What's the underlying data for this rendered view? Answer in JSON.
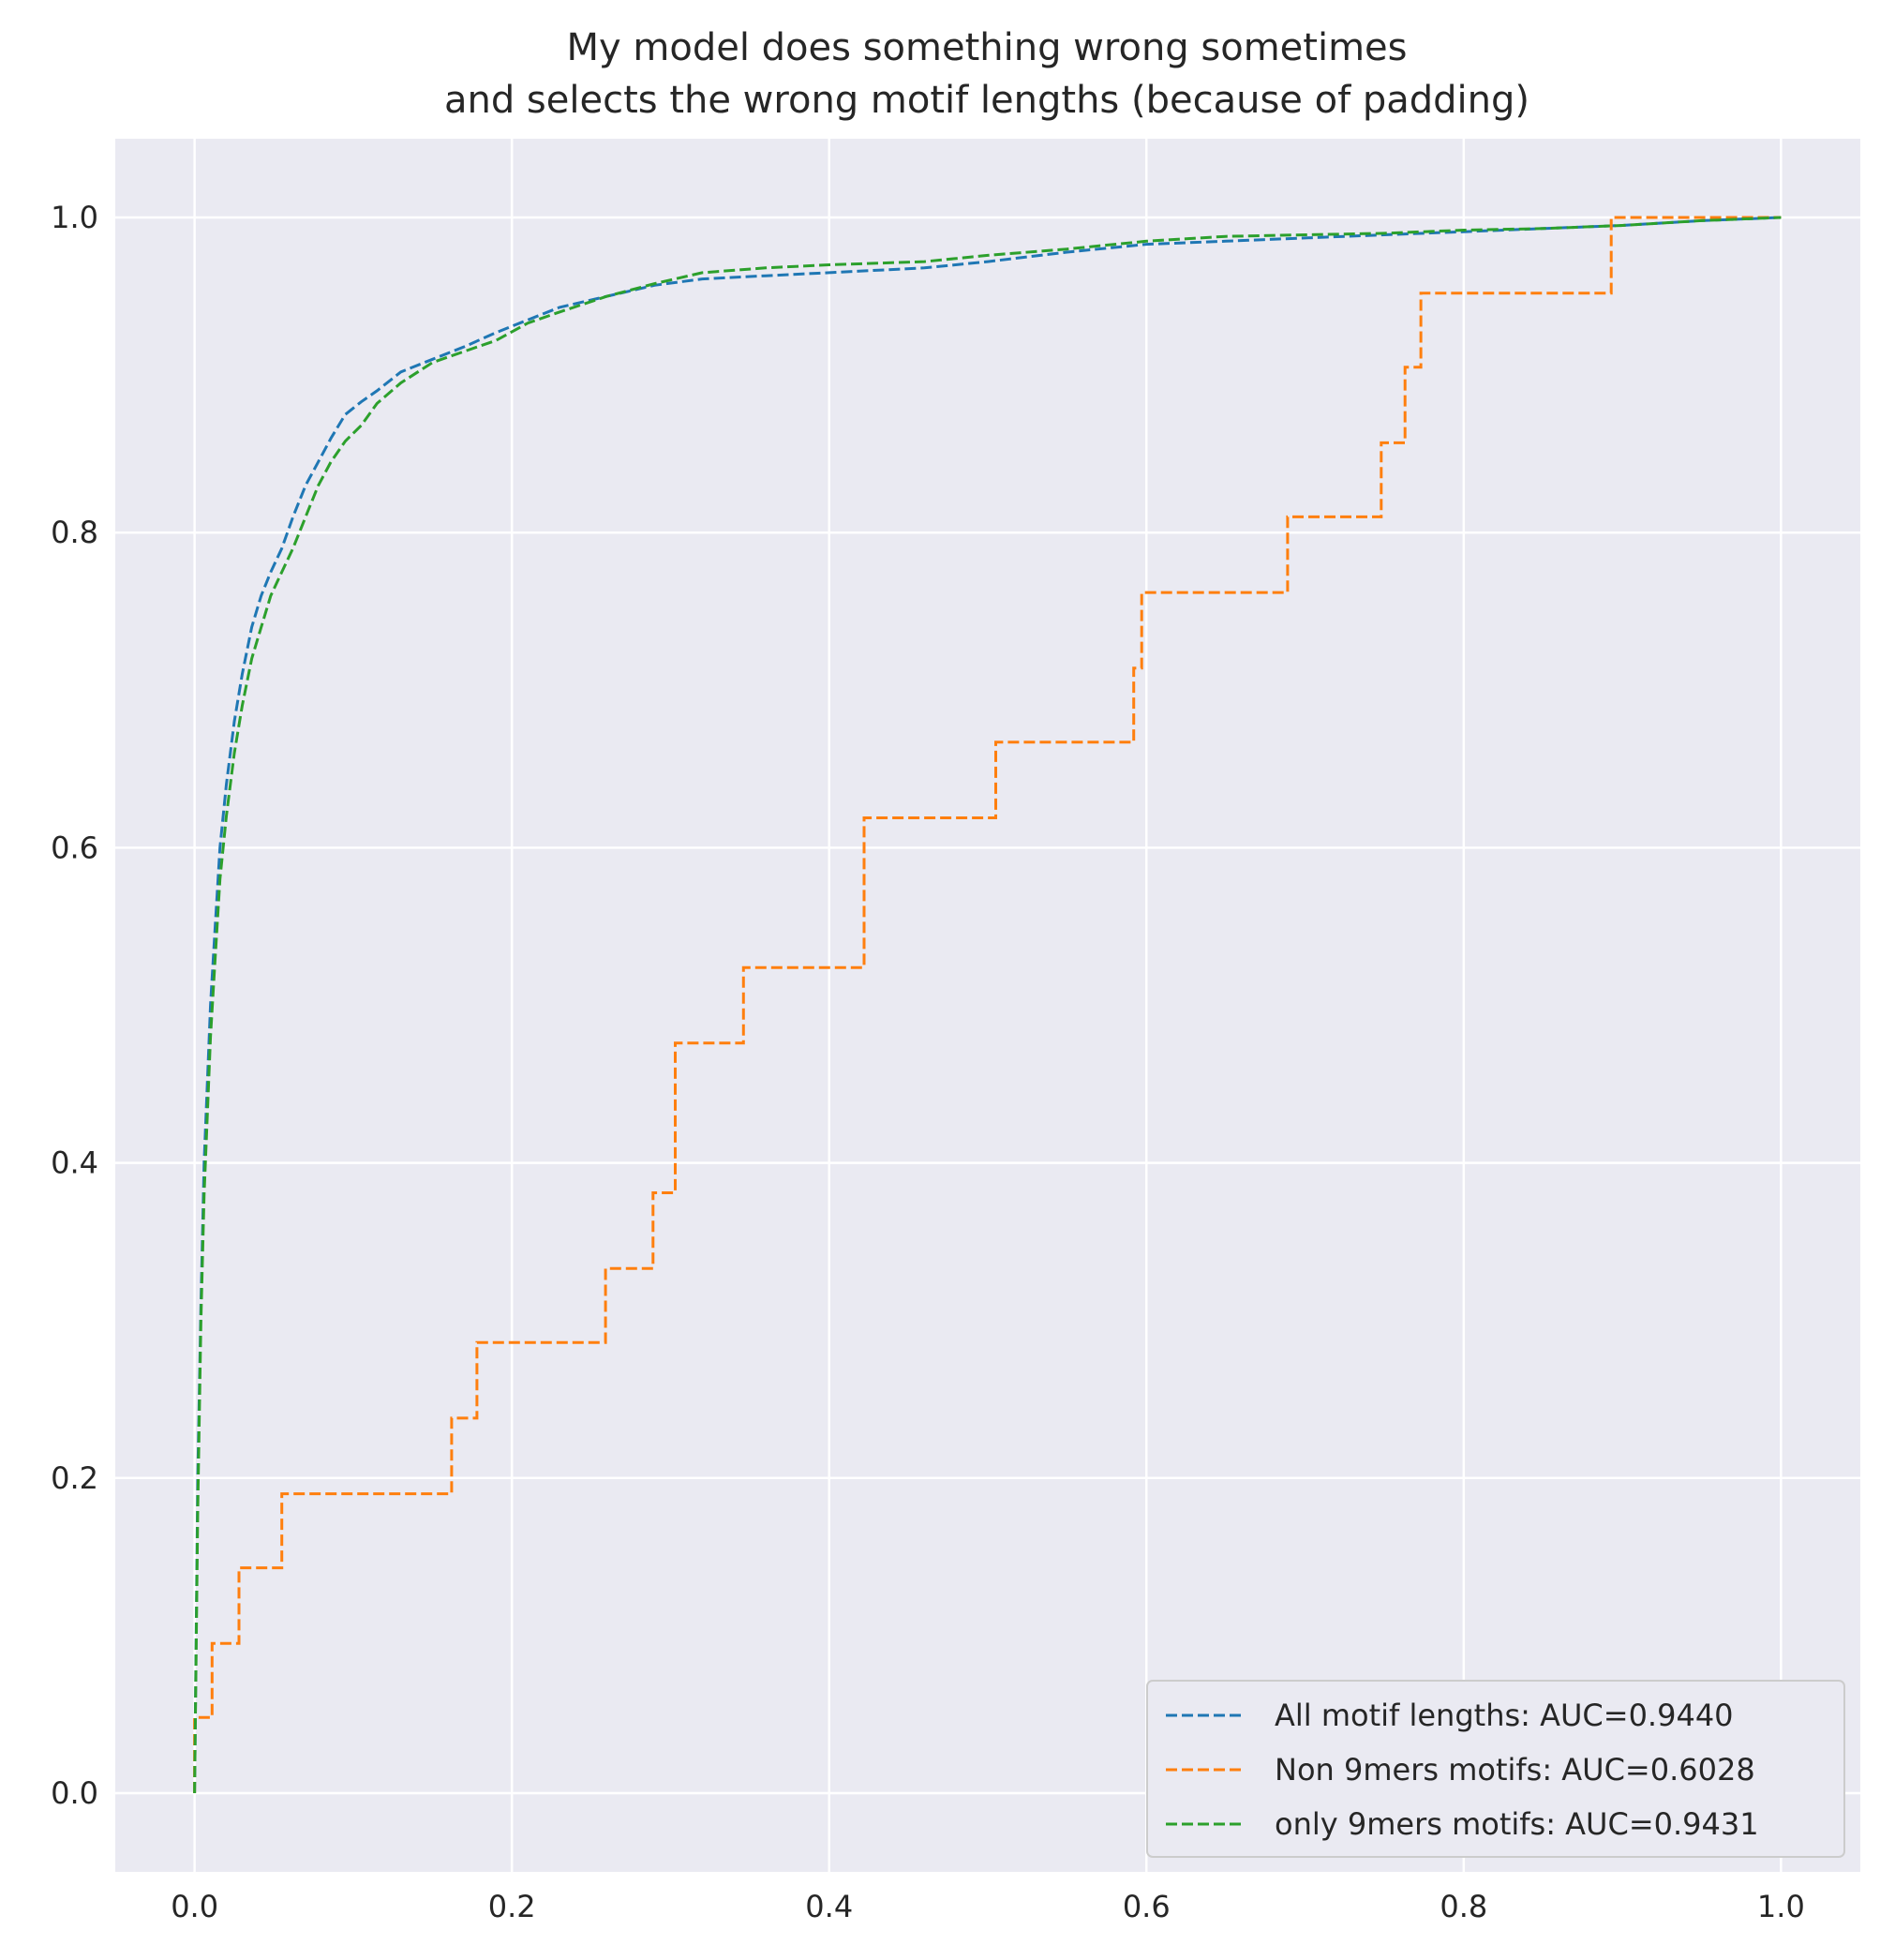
{
  "chart_data": {
    "type": "line",
    "title": "My model does something wrong sometimes",
    "subtitle": "and selects the wrong motif lengths (because of padding)",
    "xlabel": "",
    "ylabel": "",
    "xlim": [
      -0.05,
      1.05
    ],
    "ylim": [
      -0.05,
      1.05
    ],
    "x_ticks": [
      "0.0",
      "0.2",
      "0.4",
      "0.6",
      "0.8",
      "1.0"
    ],
    "y_ticks": [
      "0.0",
      "0.2",
      "0.4",
      "0.6",
      "0.8",
      "1.0"
    ],
    "grid": true,
    "legend_position": "lower-right",
    "series": [
      {
        "name": "All motif lengths: AUC=0.9440",
        "color": "#1f77b4",
        "x": [
          0.0,
          0.002,
          0.004,
          0.006,
          0.008,
          0.01,
          0.013,
          0.016,
          0.02,
          0.025,
          0.03,
          0.036,
          0.042,
          0.048,
          0.055,
          0.062,
          0.07,
          0.078,
          0.086,
          0.095,
          0.105,
          0.115,
          0.13,
          0.15,
          0.17,
          0.19,
          0.21,
          0.23,
          0.26,
          0.29,
          0.32,
          0.36,
          0.4,
          0.46,
          0.5,
          0.55,
          0.6,
          0.65,
          0.7,
          0.75,
          0.8,
          0.85,
          0.9,
          0.95,
          1.0
        ],
        "y": [
          0.0,
          0.2,
          0.31,
          0.4,
          0.45,
          0.5,
          0.55,
          0.6,
          0.64,
          0.68,
          0.71,
          0.74,
          0.76,
          0.775,
          0.79,
          0.81,
          0.83,
          0.845,
          0.86,
          0.875,
          0.883,
          0.89,
          0.902,
          0.91,
          0.918,
          0.927,
          0.935,
          0.943,
          0.95,
          0.957,
          0.961,
          0.963,
          0.965,
          0.968,
          0.972,
          0.978,
          0.983,
          0.985,
          0.987,
          0.989,
          0.991,
          0.993,
          0.995,
          0.998,
          1.0
        ]
      },
      {
        "name": "Non 9mers motifs: AUC=0.6028",
        "color": "#ff7f0e",
        "x": [
          0.0,
          0.0,
          0.011,
          0.011,
          0.028,
          0.028,
          0.055,
          0.055,
          0.162,
          0.162,
          0.178,
          0.178,
          0.259,
          0.259,
          0.289,
          0.289,
          0.303,
          0.303,
          0.346,
          0.346,
          0.422,
          0.422,
          0.505,
          0.505,
          0.592,
          0.592,
          0.597,
          0.597,
          0.689,
          0.689,
          0.748,
          0.748,
          0.763,
          0.763,
          0.773,
          0.773,
          0.893,
          0.893,
          1.0
        ],
        "y": [
          0.0,
          0.048,
          0.048,
          0.095,
          0.095,
          0.143,
          0.143,
          0.19,
          0.19,
          0.238,
          0.238,
          0.286,
          0.286,
          0.333,
          0.333,
          0.381,
          0.381,
          0.476,
          0.476,
          0.524,
          0.524,
          0.619,
          0.619,
          0.667,
          0.667,
          0.714,
          0.714,
          0.762,
          0.762,
          0.81,
          0.81,
          0.857,
          0.857,
          0.905,
          0.905,
          0.952,
          0.952,
          1.0,
          1.0
        ]
      },
      {
        "name": "only 9mers motifs: AUC=0.9431",
        "color": "#2ca02c",
        "x": [
          0.0,
          0.002,
          0.004,
          0.006,
          0.008,
          0.01,
          0.013,
          0.016,
          0.02,
          0.025,
          0.03,
          0.036,
          0.042,
          0.048,
          0.055,
          0.062,
          0.07,
          0.078,
          0.086,
          0.095,
          0.105,
          0.115,
          0.13,
          0.15,
          0.17,
          0.19,
          0.21,
          0.23,
          0.26,
          0.29,
          0.32,
          0.36,
          0.4,
          0.46,
          0.5,
          0.55,
          0.6,
          0.65,
          0.7,
          0.75,
          0.8,
          0.85,
          0.9,
          0.95,
          1.0
        ],
        "y": [
          0.0,
          0.18,
          0.3,
          0.38,
          0.43,
          0.48,
          0.53,
          0.58,
          0.62,
          0.66,
          0.69,
          0.72,
          0.74,
          0.76,
          0.775,
          0.79,
          0.81,
          0.83,
          0.845,
          0.858,
          0.868,
          0.882,
          0.895,
          0.908,
          0.915,
          0.922,
          0.933,
          0.94,
          0.95,
          0.958,
          0.965,
          0.968,
          0.97,
          0.972,
          0.976,
          0.98,
          0.985,
          0.988,
          0.989,
          0.99,
          0.992,
          0.993,
          0.995,
          0.998,
          1.0
        ]
      }
    ]
  }
}
